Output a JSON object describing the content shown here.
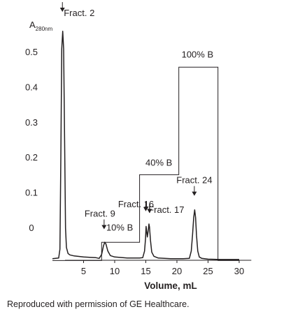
{
  "chart_data": {
    "type": "line",
    "ylabel": {
      "main": "A",
      "sub": "280nm"
    },
    "xlabel": "Volume, mL",
    "x_ticks": [
      5,
      10,
      15,
      20,
      25,
      30
    ],
    "y_ticks": [
      0,
      0.1,
      0.2,
      0.3,
      0.4,
      0.5
    ],
    "y_tick_labels": [
      "0",
      "0.1",
      "0.2",
      "0.3",
      "0.4",
      "0.5"
    ],
    "xlim": [
      0,
      31.5
    ],
    "ylim": [
      -0.092,
      0.565
    ],
    "series": [
      {
        "role": "absorbance",
        "x": [
          0.0,
          1.0,
          1.2,
          1.35,
          1.5,
          1.65,
          1.8,
          1.95,
          2.1,
          2.25,
          2.5,
          2.8,
          3.5,
          5.0,
          7.0,
          7.5,
          7.9,
          8.2,
          8.4,
          8.6,
          8.9,
          9.3,
          10.0,
          12.0,
          14.0,
          14.5,
          14.8,
          14.95,
          15.05,
          15.15,
          15.25,
          15.4,
          15.5,
          15.6,
          15.75,
          15.95,
          16.3,
          17.0,
          19.0,
          21.0,
          22.0,
          22.3,
          22.5,
          22.7,
          22.85,
          23.0,
          23.15,
          23.35,
          23.6,
          24.0,
          25.0,
          27.0,
          29.0,
          30.0
        ],
        "y": [
          -0.087,
          -0.085,
          -0.06,
          0.2,
          0.51,
          0.56,
          0.51,
          0.25,
          0.0,
          -0.055,
          -0.072,
          -0.076,
          -0.079,
          -0.082,
          -0.084,
          -0.086,
          -0.075,
          -0.05,
          -0.04,
          -0.045,
          -0.065,
          -0.078,
          -0.082,
          -0.085,
          -0.085,
          -0.084,
          -0.065,
          -0.03,
          0.005,
          -0.01,
          -0.025,
          -0.005,
          0.012,
          0.003,
          -0.035,
          -0.068,
          -0.08,
          -0.085,
          -0.087,
          -0.087,
          -0.086,
          -0.065,
          -0.02,
          0.03,
          0.052,
          0.03,
          -0.02,
          -0.065,
          -0.082,
          -0.086,
          -0.088,
          -0.089,
          -0.089,
          -0.089
        ]
      },
      {
        "role": "gradient",
        "x": [
          0.0,
          7.9,
          7.9,
          14.0,
          14.0,
          20.3,
          20.3,
          26.6,
          26.6,
          30.0
        ],
        "y": [
          -0.092,
          -0.092,
          -0.04,
          -0.04,
          0.152,
          0.152,
          0.458,
          0.458,
          -0.092,
          -0.092
        ]
      }
    ],
    "annotations": [
      {
        "label": "Fract. 2",
        "x": 1.6,
        "y": 0.615,
        "arrow": true
      },
      {
        "label": "Fract. 9",
        "x": 8.3,
        "y": -0.003,
        "arrow": true
      },
      {
        "label": "Fract. 16",
        "x": 15.0,
        "y": 0.048,
        "arrow": true
      },
      {
        "label": "Fract. 17",
        "x": 15.6,
        "y": 0.043,
        "arrow": true
      },
      {
        "label": "Fract. 24",
        "x": 22.8,
        "y": 0.092,
        "arrow": true
      },
      {
        "label": "10% B",
        "x": 10.8,
        "y": -0.007,
        "arrow": false
      },
      {
        "label": "40% B",
        "x": 17.1,
        "y": 0.178,
        "arrow": false
      },
      {
        "label": "100% B",
        "x": 23.3,
        "y": 0.485,
        "arrow": false
      }
    ],
    "grid": false,
    "legend": "none"
  },
  "footer": {
    "credit": "Reproduced with permission of GE Healthcare."
  }
}
